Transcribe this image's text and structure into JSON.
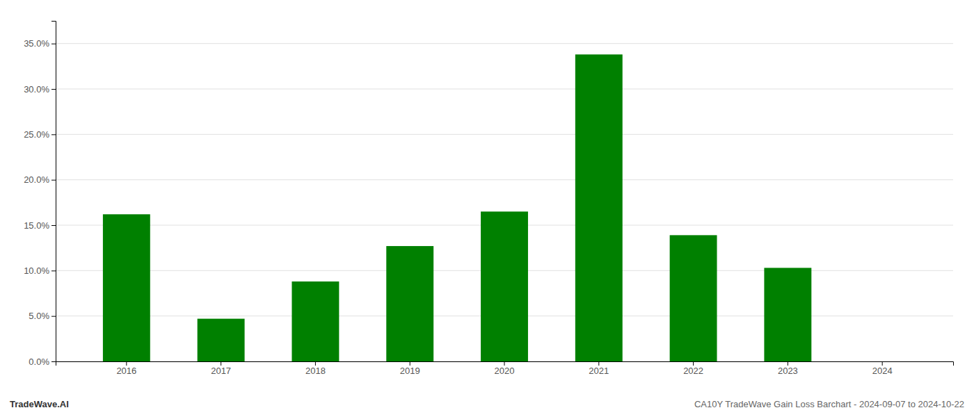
{
  "chart_data": {
    "type": "bar",
    "title": "CA10Y TradeWave Gain Loss Barchart - 2024-09-07 to 2024-10-22",
    "annotations": [
      "TradeWave.AI"
    ],
    "categories": [
      "2016",
      "2017",
      "2018",
      "2019",
      "2020",
      "2021",
      "2022",
      "2023",
      "2024"
    ],
    "values": [
      0.162,
      0.047,
      0.088,
      0.127,
      0.165,
      0.338,
      0.139,
      0.103,
      0.0
    ],
    "color": "#008000",
    "ylim": [
      0,
      0.375
    ],
    "yticks": [
      {
        "value": 0.0,
        "label": "0.0%"
      },
      {
        "value": 0.05,
        "label": "5.0%"
      },
      {
        "value": 0.1,
        "label": "10.0%"
      },
      {
        "value": 0.15,
        "label": "15.0%"
      },
      {
        "value": 0.2,
        "label": "20.0%"
      },
      {
        "value": 0.25,
        "label": "25.0%"
      },
      {
        "value": 0.3,
        "label": "30.0%"
      },
      {
        "value": 0.35,
        "label": "35.0%"
      }
    ],
    "grid": true
  }
}
